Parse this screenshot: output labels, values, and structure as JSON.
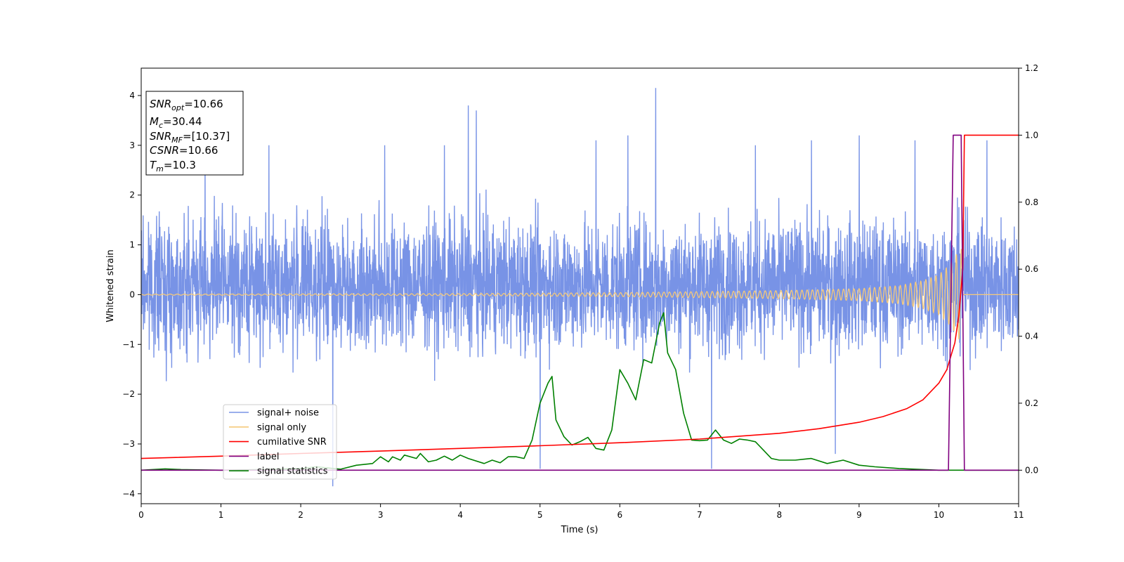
{
  "chart_data": {
    "type": "line",
    "xlabel": "Time (s)",
    "ylabel": "Whitened strain",
    "xlim": [
      0,
      11
    ],
    "ylim": [
      -4.2,
      4.55
    ],
    "y2lim": [
      -0.1,
      1.2
    ],
    "xticks": [
      "0",
      "1",
      "2",
      "3",
      "4",
      "5",
      "6",
      "7",
      "8",
      "9",
      "10",
      "11"
    ],
    "yticks": [
      "−4",
      "−3",
      "−2",
      "−1",
      "0",
      "1",
      "2",
      "3",
      "4"
    ],
    "y2ticks": [
      "0.0",
      "0.2",
      "0.4",
      "0.6",
      "0.8",
      "1.0",
      "1.2"
    ],
    "info_box": [
      {
        "main": "SNR",
        "sub": "opt",
        "rest": "=10.66"
      },
      {
        "main": "M",
        "sub": "c",
        "rest": "=30.44"
      },
      {
        "main": "SNR",
        "sub": "MF",
        "rest": "=[10.37]"
      },
      {
        "main": "CSNR",
        "sub": "",
        "rest": "=10.66"
      },
      {
        "main": "T",
        "sub": "m",
        "rest": "=10.3"
      }
    ],
    "legend": {
      "placement": "lower-left",
      "entries": [
        {
          "label": "signal+ noise",
          "color": "#7893e6"
        },
        {
          "label": "signal only",
          "color": "#f5c97a"
        },
        {
          "label": "cumilative SNR",
          "color": "#ff0000"
        },
        {
          "label": "label",
          "color": "#800080"
        },
        {
          "label": "signal statistics",
          "color": "#008000"
        }
      ]
    },
    "series": [
      {
        "name": "signal+ noise",
        "axis": "left",
        "color": "#7893e6",
        "description": "whitened noise band roughly between -2.2 and 2.6",
        "noise_band": [
          -2.2,
          2.6
        ],
        "spikes": [
          [
            0.8,
            2.9
          ],
          [
            1.6,
            3.0
          ],
          [
            2.4,
            -3.85
          ],
          [
            3.05,
            3.0
          ],
          [
            3.8,
            3.0
          ],
          [
            4.1,
            3.8
          ],
          [
            4.2,
            3.7
          ],
          [
            5.0,
            -3.5
          ],
          [
            5.7,
            3.1
          ],
          [
            6.1,
            3.2
          ],
          [
            6.45,
            4.15
          ],
          [
            7.15,
            -3.5
          ],
          [
            7.7,
            3.0
          ],
          [
            8.4,
            3.1
          ],
          [
            8.7,
            -3.2
          ],
          [
            9.0,
            3.2
          ],
          [
            9.7,
            3.1
          ],
          [
            10.6,
            3.1
          ]
        ]
      },
      {
        "name": "signal only",
        "axis": "left",
        "color": "#f5c97a",
        "description": "chirp with amplitude growing toward merger",
        "chirp_envelope": [
          [
            0,
            0.01
          ],
          [
            4,
            0.02
          ],
          [
            6,
            0.04
          ],
          [
            8,
            0.08
          ],
          [
            9,
            0.12
          ],
          [
            9.5,
            0.18
          ],
          [
            9.8,
            0.28
          ],
          [
            10.0,
            0.4
          ],
          [
            10.1,
            0.55
          ],
          [
            10.2,
            0.75
          ],
          [
            10.28,
            0.98
          ],
          [
            10.3,
            0.0
          ],
          [
            11,
            0.0
          ]
        ]
      },
      {
        "name": "cumilative SNR",
        "axis": "right",
        "color": "#ff0000",
        "x": [
          0,
          1,
          2,
          3,
          4,
          5,
          6,
          7,
          8,
          8.5,
          9,
          9.3,
          9.6,
          9.8,
          10.0,
          10.1,
          10.2,
          10.25,
          10.3,
          10.32,
          11
        ],
        "y": [
          0.035,
          0.042,
          0.05,
          0.057,
          0.065,
          0.073,
          0.082,
          0.093,
          0.11,
          0.124,
          0.143,
          0.16,
          0.184,
          0.21,
          0.26,
          0.3,
          0.38,
          0.46,
          0.6,
          1.0,
          1.0
        ]
      },
      {
        "name": "label",
        "axis": "right",
        "color": "#800080",
        "x": [
          0,
          10.12,
          10.18,
          10.28,
          10.32,
          11
        ],
        "y": [
          0,
          0,
          1.0,
          1.0,
          0,
          0
        ]
      },
      {
        "name": "signal statistics",
        "axis": "right",
        "color": "#008000",
        "x": [
          0,
          0.3,
          0.5,
          1.0,
          1.5,
          2.0,
          2.2,
          2.5,
          2.7,
          2.9,
          3.0,
          3.1,
          3.15,
          3.25,
          3.3,
          3.45,
          3.5,
          3.6,
          3.7,
          3.8,
          3.9,
          4.0,
          4.1,
          4.3,
          4.4,
          4.5,
          4.6,
          4.7,
          4.8,
          4.9,
          5.0,
          5.1,
          5.15,
          5.2,
          5.3,
          5.4,
          5.5,
          5.6,
          5.7,
          5.8,
          5.9,
          6.0,
          6.1,
          6.2,
          6.3,
          6.4,
          6.5,
          6.55,
          6.6,
          6.7,
          6.8,
          6.9,
          7.0,
          7.1,
          7.2,
          7.3,
          7.4,
          7.5,
          7.6,
          7.7,
          7.8,
          7.9,
          8.0,
          8.2,
          8.4,
          8.6,
          8.8,
          9.0,
          9.2,
          9.5,
          10.0,
          11.0
        ],
        "y": [
          0.0,
          0.004,
          0.002,
          0.0,
          0.002,
          0.005,
          0.01,
          0.003,
          0.015,
          0.02,
          0.04,
          0.025,
          0.04,
          0.03,
          0.045,
          0.035,
          0.05,
          0.025,
          0.03,
          0.042,
          0.03,
          0.045,
          0.035,
          0.02,
          0.03,
          0.022,
          0.04,
          0.04,
          0.035,
          0.09,
          0.2,
          0.26,
          0.28,
          0.15,
          0.1,
          0.075,
          0.085,
          0.098,
          0.065,
          0.06,
          0.12,
          0.3,
          0.26,
          0.21,
          0.33,
          0.32,
          0.44,
          0.47,
          0.35,
          0.3,
          0.17,
          0.09,
          0.088,
          0.09,
          0.12,
          0.09,
          0.08,
          0.093,
          0.09,
          0.085,
          0.06,
          0.035,
          0.03,
          0.03,
          0.035,
          0.02,
          0.03,
          0.015,
          0.01,
          0.005,
          0.0,
          0.0
        ]
      }
    ]
  }
}
